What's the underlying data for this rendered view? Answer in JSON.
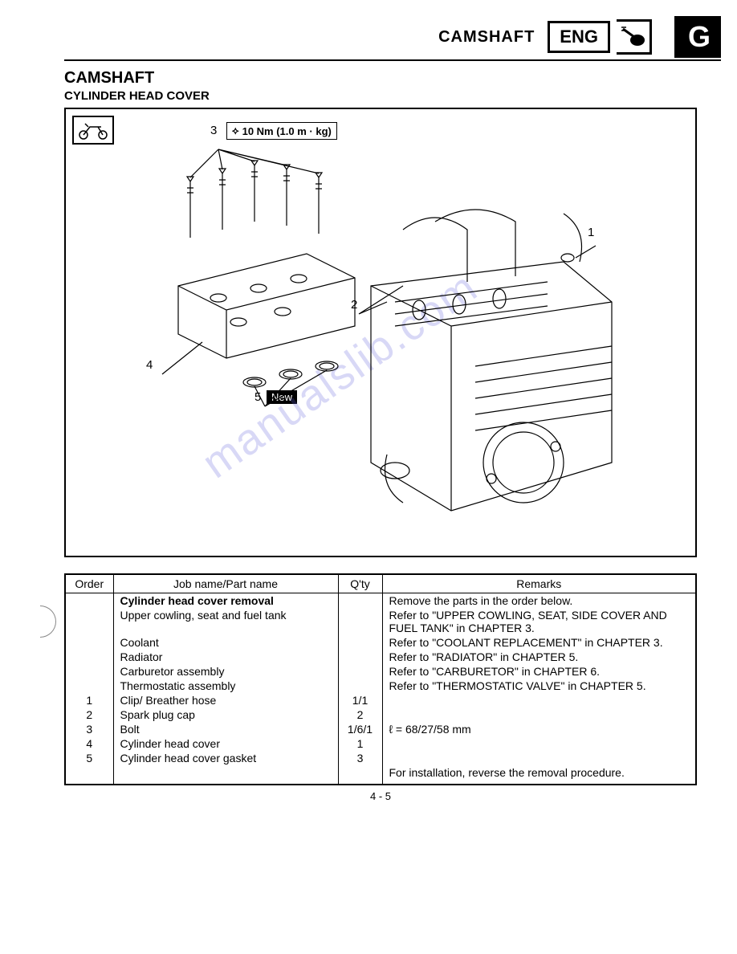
{
  "header": {
    "title": "CAMSHAFT",
    "badge": "ENG",
    "letter": "G"
  },
  "section": {
    "title": "CAMSHAFT",
    "subtitle": "CYLINDER HEAD COVER"
  },
  "diagram": {
    "torque_spec": "10 Nm (1.0 m · kg)",
    "callouts": {
      "c1": "1",
      "c2": "2",
      "c3": "3",
      "c4": "4",
      "c5": "5"
    },
    "new_tag": "New",
    "watermark": "manualslib.com"
  },
  "table": {
    "headers": {
      "order": "Order",
      "job": "Job name/Part name",
      "qty": "Q'ty",
      "remarks": "Remarks"
    },
    "rows": [
      {
        "order": "",
        "job_bold": "Cylinder head cover removal",
        "job": "",
        "qty": "",
        "remarks": "Remove the parts in the order below."
      },
      {
        "order": "",
        "job": "Upper cowling, seat and fuel tank",
        "qty": "",
        "remarks": "Refer to \"UPPER COWLING, SEAT, SIDE COVER AND FUEL TANK\" in CHAPTER 3."
      },
      {
        "order": "",
        "job": "Coolant",
        "qty": "",
        "remarks": "Refer to \"COOLANT REPLACEMENT\" in CHAPTER 3."
      },
      {
        "order": "",
        "job": "Radiator",
        "qty": "",
        "remarks": "Refer to \"RADIATOR\" in CHAPTER 5."
      },
      {
        "order": "",
        "job": "Carburetor assembly",
        "qty": "",
        "remarks": "Refer to \"CARBURETOR\" in CHAPTER 6."
      },
      {
        "order": "",
        "job": "Thermostatic assembly",
        "qty": "",
        "remarks": "Refer to \"THERMOSTATIC VALVE\" in CHAPTER 5."
      },
      {
        "order": "1",
        "job": "Clip/ Breather hose",
        "qty": "1/1",
        "remarks": ""
      },
      {
        "order": "2",
        "job": "Spark plug cap",
        "qty": "2",
        "remarks": ""
      },
      {
        "order": "3",
        "job": "Bolt",
        "qty": "1/6/1",
        "remarks": "ℓ = 68/27/58 mm"
      },
      {
        "order": "4",
        "job": "Cylinder head cover",
        "qty": "1",
        "remarks": ""
      },
      {
        "order": "5",
        "job": "Cylinder head cover gasket",
        "qty": "3",
        "remarks": ""
      },
      {
        "order": "",
        "job": "",
        "qty": "",
        "remarks": "For installation, reverse the removal procedure."
      }
    ]
  },
  "page_number": "4 - 5"
}
